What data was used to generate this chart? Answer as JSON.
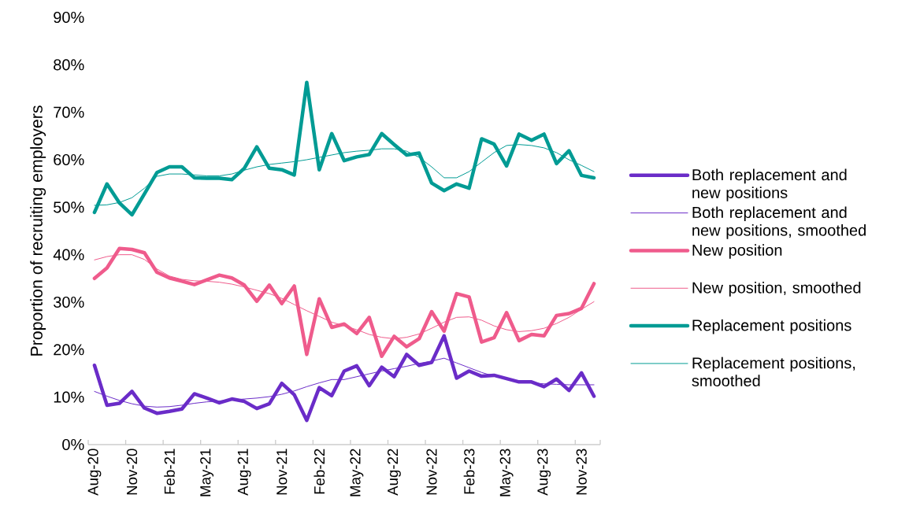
{
  "chart_data": {
    "type": "line",
    "ylabel": "Proportion of recruiting employers",
    "categories": [
      "Aug-20",
      null,
      null,
      "Nov-20",
      null,
      null,
      "Feb-21",
      null,
      null,
      "May-21",
      null,
      null,
      "Aug-21",
      null,
      null,
      "Nov-21",
      null,
      null,
      "Feb-22",
      null,
      null,
      "May-22",
      null,
      null,
      "Aug-22",
      null,
      null,
      "Nov-22",
      null,
      null,
      "Feb-23",
      null,
      null,
      "May-23",
      null,
      null,
      "Aug-23",
      null,
      null,
      "Nov-23",
      null
    ],
    "series": [
      {
        "name": "Both replacement and new positions",
        "color": "#6a2cc8",
        "values": [
          16.7,
          8.3,
          8.7,
          11.2,
          7.7,
          6.6,
          7.0,
          7.5,
          10.7,
          9.8,
          8.8,
          9.6,
          9.1,
          7.6,
          8.6,
          12.9,
          10.5,
          5.1,
          12.0,
          10.3,
          15.5,
          16.6,
          12.4,
          16.3,
          14.3,
          19.0,
          16.7,
          17.3,
          22.9,
          14.0,
          15.5,
          14.4,
          14.6,
          13.9,
          13.2,
          13.2,
          12.2,
          13.8,
          11.4,
          15.1,
          10.2
        ]
      },
      {
        "name": "Both replacement and new positions, smoothed",
        "color": "#6a2cc8",
        "values": [
          11.2,
          10.2,
          9.3,
          8.6,
          8.1,
          7.9,
          8.0,
          8.3,
          8.7,
          9.0,
          9.2,
          9.4,
          9.6,
          9.8,
          10.1,
          10.6,
          11.3,
          12.2,
          13.0,
          13.7,
          13.7,
          14.3,
          14.9,
          15.5,
          16.0,
          16.5,
          17.1,
          17.6,
          18.2,
          17.2,
          16.2,
          15.2,
          14.4,
          13.8,
          13.3,
          13.0,
          12.8,
          12.7,
          12.6,
          12.6,
          12.6
        ]
      },
      {
        "name": "New position",
        "color": "#ef5b8c",
        "values": [
          35.0,
          37.2,
          41.3,
          41.1,
          40.4,
          36.3,
          35.1,
          34.4,
          33.7,
          34.7,
          35.7,
          35.1,
          33.6,
          30.2,
          33.6,
          29.7,
          33.4,
          19.0,
          30.7,
          24.7,
          25.4,
          23.4,
          26.8,
          18.6,
          22.8,
          20.6,
          22.3,
          28.0,
          23.9,
          31.8,
          31.1,
          21.6,
          22.5,
          27.8,
          21.9,
          23.2,
          22.9,
          27.2,
          27.6,
          28.7,
          33.9
        ]
      },
      {
        "name": "New position, smoothed",
        "color": "#ef5b8c",
        "values": [
          38.9,
          39.6,
          40.0,
          40.0,
          39.0,
          37.0,
          35.5,
          34.8,
          34.5,
          34.4,
          34.2,
          33.8,
          33.2,
          32.5,
          31.8,
          30.8,
          29.5,
          28.2,
          27.0,
          25.8,
          25.0,
          24.2,
          23.2,
          22.6,
          22.3,
          22.6,
          23.3,
          24.5,
          25.8,
          26.8,
          26.9,
          26.2,
          25.0,
          24.2,
          23.8,
          24.0,
          24.5,
          25.5,
          26.8,
          28.5,
          30.1
        ]
      },
      {
        "name": "Replacement positions",
        "color": "#009b94",
        "values": [
          48.9,
          54.9,
          50.9,
          48.4,
          52.8,
          57.3,
          58.5,
          58.5,
          56.2,
          56.1,
          56.1,
          55.8,
          58.2,
          62.7,
          58.2,
          57.9,
          56.8,
          76.3,
          57.9,
          65.5,
          59.8,
          60.6,
          61.1,
          65.5,
          63.2,
          61.0,
          61.4,
          55.1,
          53.5,
          54.9,
          54.0,
          64.4,
          63.3,
          58.7,
          65.4,
          64.1,
          65.4,
          59.2,
          61.9,
          56.7,
          56.2
        ]
      },
      {
        "name": "Replacement positions, smoothed",
        "color": "#009b94",
        "values": [
          50.4,
          50.5,
          51.0,
          52.0,
          54.0,
          56.5,
          57.0,
          57.0,
          56.8,
          56.6,
          56.6,
          57.0,
          57.8,
          58.5,
          59.0,
          59.3,
          59.6,
          60.0,
          60.5,
          61.0,
          61.5,
          61.8,
          62.0,
          62.3,
          62.3,
          61.8,
          60.5,
          58.5,
          56.2,
          56.2,
          57.5,
          59.5,
          61.5,
          63.0,
          63.2,
          63.0,
          62.5,
          61.5,
          60.0,
          58.8,
          57.5
        ]
      }
    ],
    "ylim": [
      0,
      90
    ],
    "yticks": [
      {
        "value": 0,
        "label": "0%"
      },
      {
        "value": 10,
        "label": "10%"
      },
      {
        "value": 20,
        "label": "20%"
      },
      {
        "value": 30,
        "label": "30%"
      },
      {
        "value": 40,
        "label": "40%"
      },
      {
        "value": 50,
        "label": "50%"
      },
      {
        "value": 60,
        "label": "60%"
      },
      {
        "value": 70,
        "label": "70%"
      },
      {
        "value": 80,
        "label": "80%"
      },
      {
        "value": 90,
        "label": "90%"
      }
    ],
    "legend": "right",
    "grid": false,
    "marker": "none",
    "line_style": "solid"
  }
}
